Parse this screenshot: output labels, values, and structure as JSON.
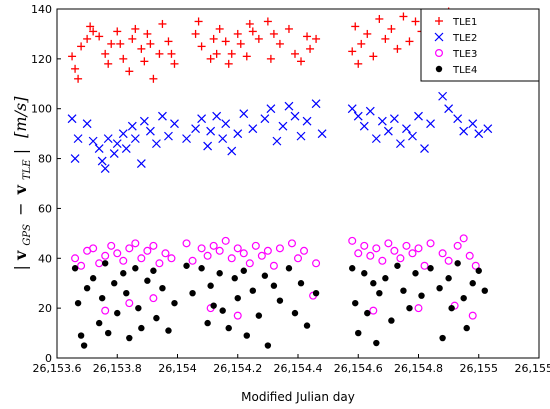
{
  "chart_data": {
    "type": "scatter",
    "title": "",
    "xlabel": "Modified Julian day",
    "ylabel": {
      "bar_left": "|",
      "v1": "v",
      "s1": "GPS",
      "minus": "−",
      "v2": "v",
      "s2": "TLE",
      "bar_right": "|",
      "unit": "[m/s]"
    },
    "xlim": [
      26153.6,
      26155.2
    ],
    "ylim": [
      0,
      140
    ],
    "x_ticks": [
      {
        "value": 26153.6,
        "label": "26,153.6"
      },
      {
        "value": 26153.8,
        "label": "26,153.8"
      },
      {
        "value": 26154.0,
        "label": "26,154"
      },
      {
        "value": 26154.2,
        "label": "26,154.2"
      },
      {
        "value": 26154.4,
        "label": "26,154.4"
      },
      {
        "value": 26154.6,
        "label": "26,154.6"
      },
      {
        "value": 26154.8,
        "label": "26,154.8"
      },
      {
        "value": 26155.0,
        "label": "26,155"
      },
      {
        "value": 26155.2,
        "label": "26,155.2"
      }
    ],
    "y_ticks": [
      {
        "value": 0,
        "label": "0"
      },
      {
        "value": 20,
        "label": "20"
      },
      {
        "value": 40,
        "label": "40"
      },
      {
        "value": 60,
        "label": "60"
      },
      {
        "value": 80,
        "label": "80"
      },
      {
        "value": 100,
        "label": "100"
      },
      {
        "value": 120,
        "label": "120"
      },
      {
        "value": 140,
        "label": "140"
      }
    ],
    "grid": false,
    "legend_position": "top-right",
    "series": [
      {
        "name": "TLE1",
        "marker": "plus",
        "color": "#ff0000",
        "points": [
          [
            26153.65,
            121
          ],
          [
            26153.66,
            116
          ],
          [
            26153.67,
            112
          ],
          [
            26153.68,
            125
          ],
          [
            26153.7,
            128
          ],
          [
            26153.71,
            133
          ],
          [
            26153.72,
            131
          ],
          [
            26153.74,
            129
          ],
          [
            26153.76,
            122
          ],
          [
            26153.77,
            118
          ],
          [
            26153.78,
            126
          ],
          [
            26153.8,
            131
          ],
          [
            26153.81,
            126
          ],
          [
            26153.82,
            120
          ],
          [
            26153.84,
            115
          ],
          [
            26153.85,
            128
          ],
          [
            26153.86,
            132
          ],
          [
            26153.88,
            124
          ],
          [
            26153.89,
            119
          ],
          [
            26153.9,
            130
          ],
          [
            26153.91,
            126
          ],
          [
            26153.92,
            112
          ],
          [
            26153.94,
            122
          ],
          [
            26153.95,
            134
          ],
          [
            26153.97,
            127
          ],
          [
            26153.98,
            122
          ],
          [
            26153.99,
            118
          ],
          [
            26154.06,
            130
          ],
          [
            26154.07,
            135
          ],
          [
            26154.08,
            125
          ],
          [
            26154.11,
            120
          ],
          [
            26154.12,
            128
          ],
          [
            26154.13,
            122
          ],
          [
            26154.14,
            132
          ],
          [
            26154.16,
            127
          ],
          [
            26154.17,
            118
          ],
          [
            26154.18,
            122
          ],
          [
            26154.2,
            130
          ],
          [
            26154.21,
            126
          ],
          [
            26154.23,
            121
          ],
          [
            26154.24,
            134
          ],
          [
            26154.25,
            131
          ],
          [
            26154.27,
            128
          ],
          [
            26154.3,
            135
          ],
          [
            26154.31,
            120
          ],
          [
            26154.32,
            130
          ],
          [
            26154.34,
            126
          ],
          [
            26154.37,
            132
          ],
          [
            26154.39,
            122
          ],
          [
            26154.41,
            119
          ],
          [
            26154.43,
            129
          ],
          [
            26154.44,
            124
          ],
          [
            26154.46,
            128
          ],
          [
            26154.58,
            123
          ],
          [
            26154.59,
            133
          ],
          [
            26154.6,
            118
          ],
          [
            26154.61,
            126
          ],
          [
            26154.63,
            130
          ],
          [
            26154.65,
            121
          ],
          [
            26154.67,
            136
          ],
          [
            26154.69,
            128
          ],
          [
            26154.71,
            132
          ],
          [
            26154.73,
            124
          ],
          [
            26154.75,
            137
          ],
          [
            26154.77,
            127
          ],
          [
            26154.79,
            135
          ],
          [
            26154.81,
            131
          ],
          [
            26154.83,
            122
          ],
          [
            26154.86,
            134
          ],
          [
            26154.88,
            128
          ],
          [
            26154.9,
            139
          ],
          [
            26154.93,
            138
          ],
          [
            26154.95,
            133
          ],
          [
            26154.97,
            136
          ],
          [
            26154.99,
            130
          ]
        ]
      },
      {
        "name": "TLE2",
        "marker": "x",
        "color": "#0000ff",
        "points": [
          [
            26153.65,
            96
          ],
          [
            26153.66,
            80
          ],
          [
            26153.67,
            88
          ],
          [
            26153.7,
            94
          ],
          [
            26153.72,
            87
          ],
          [
            26153.74,
            84
          ],
          [
            26153.75,
            79
          ],
          [
            26153.76,
            76
          ],
          [
            26153.77,
            88
          ],
          [
            26153.79,
            82
          ],
          [
            26153.8,
            86
          ],
          [
            26153.82,
            90
          ],
          [
            26153.83,
            84
          ],
          [
            26153.85,
            93
          ],
          [
            26153.86,
            88
          ],
          [
            26153.88,
            78
          ],
          [
            26153.89,
            95
          ],
          [
            26153.91,
            91
          ],
          [
            26153.93,
            86
          ],
          [
            26153.95,
            97
          ],
          [
            26153.97,
            89
          ],
          [
            26153.99,
            94
          ],
          [
            26154.03,
            88
          ],
          [
            26154.06,
            92
          ],
          [
            26154.08,
            96
          ],
          [
            26154.1,
            85
          ],
          [
            26154.11,
            91
          ],
          [
            26154.13,
            97
          ],
          [
            26154.15,
            88
          ],
          [
            26154.16,
            94
          ],
          [
            26154.18,
            83
          ],
          [
            26154.2,
            90
          ],
          [
            26154.22,
            98
          ],
          [
            26154.25,
            92
          ],
          [
            26154.29,
            96
          ],
          [
            26154.31,
            100
          ],
          [
            26154.33,
            87
          ],
          [
            26154.35,
            93
          ],
          [
            26154.37,
            101
          ],
          [
            26154.39,
            97
          ],
          [
            26154.41,
            89
          ],
          [
            26154.43,
            95
          ],
          [
            26154.46,
            102
          ],
          [
            26154.48,
            90
          ],
          [
            26154.58,
            100
          ],
          [
            26154.6,
            97
          ],
          [
            26154.62,
            93
          ],
          [
            26154.64,
            99
          ],
          [
            26154.66,
            88
          ],
          [
            26154.68,
            95
          ],
          [
            26154.7,
            91
          ],
          [
            26154.72,
            96
          ],
          [
            26154.74,
            86
          ],
          [
            26154.76,
            92
          ],
          [
            26154.78,
            89
          ],
          [
            26154.8,
            97
          ],
          [
            26154.82,
            84
          ],
          [
            26154.84,
            94
          ],
          [
            26154.88,
            105
          ],
          [
            26154.9,
            100
          ],
          [
            26154.93,
            96
          ],
          [
            26154.95,
            91
          ],
          [
            26154.98,
            94
          ],
          [
            26155.0,
            90
          ],
          [
            26155.03,
            92
          ]
        ]
      },
      {
        "name": "TLE3",
        "marker": "circle-open",
        "color": "#ff00ff",
        "points": [
          [
            26153.66,
            40
          ],
          [
            26153.68,
            37
          ],
          [
            26153.7,
            43
          ],
          [
            26153.72,
            44
          ],
          [
            26153.74,
            38
          ],
          [
            26153.76,
            41
          ],
          [
            26153.78,
            45
          ],
          [
            26153.8,
            42
          ],
          [
            26153.82,
            39
          ],
          [
            26153.84,
            44
          ],
          [
            26153.86,
            46
          ],
          [
            26153.88,
            40
          ],
          [
            26153.9,
            43
          ],
          [
            26153.92,
            45
          ],
          [
            26153.94,
            38
          ],
          [
            26153.96,
            42
          ],
          [
            26153.98,
            40
          ],
          [
            26154.03,
            46
          ],
          [
            26154.05,
            39
          ],
          [
            26154.08,
            44
          ],
          [
            26154.1,
            41
          ],
          [
            26154.12,
            45
          ],
          [
            26154.14,
            43
          ],
          [
            26154.16,
            47
          ],
          [
            26154.18,
            40
          ],
          [
            26154.2,
            44
          ],
          [
            26154.22,
            42
          ],
          [
            26154.24,
            38
          ],
          [
            26154.26,
            45
          ],
          [
            26154.28,
            41
          ],
          [
            26154.3,
            43
          ],
          [
            26154.32,
            37
          ],
          [
            26154.34,
            44
          ],
          [
            26154.38,
            46
          ],
          [
            26154.4,
            40
          ],
          [
            26154.42,
            43
          ],
          [
            26154.46,
            38
          ],
          [
            26154.58,
            47
          ],
          [
            26154.6,
            42
          ],
          [
            26154.62,
            45
          ],
          [
            26154.64,
            41
          ],
          [
            26154.66,
            44
          ],
          [
            26154.68,
            39
          ],
          [
            26154.7,
            46
          ],
          [
            26154.72,
            43
          ],
          [
            26154.74,
            40
          ],
          [
            26154.76,
            45
          ],
          [
            26154.78,
            42
          ],
          [
            26154.8,
            44
          ],
          [
            26154.82,
            37
          ],
          [
            26154.84,
            46
          ],
          [
            26154.88,
            42
          ],
          [
            26154.9,
            39
          ],
          [
            26154.93,
            45
          ],
          [
            26154.95,
            48
          ],
          [
            26154.97,
            41
          ],
          [
            26154.99,
            37
          ],
          [
            26153.76,
            19
          ],
          [
            26153.84,
            22
          ],
          [
            26153.92,
            24
          ],
          [
            26154.2,
            17
          ],
          [
            26154.65,
            19
          ],
          [
            26154.8,
            20
          ],
          [
            26154.92,
            21
          ],
          [
            26154.98,
            17
          ],
          [
            26154.11,
            20
          ],
          [
            26154.45,
            25
          ]
        ]
      },
      {
        "name": "TLE4",
        "marker": "circle-filled",
        "color": "#000000",
        "points": [
          [
            26153.66,
            36
          ],
          [
            26153.67,
            22
          ],
          [
            26153.68,
            9
          ],
          [
            26153.69,
            5
          ],
          [
            26153.7,
            28
          ],
          [
            26153.72,
            32
          ],
          [
            26153.74,
            14
          ],
          [
            26153.75,
            24
          ],
          [
            26153.76,
            38
          ],
          [
            26153.77,
            10
          ],
          [
            26153.79,
            30
          ],
          [
            26153.8,
            18
          ],
          [
            26153.82,
            34
          ],
          [
            26153.83,
            26
          ],
          [
            26153.84,
            8
          ],
          [
            26153.86,
            36
          ],
          [
            26153.87,
            20
          ],
          [
            26153.88,
            12
          ],
          [
            26153.9,
            31
          ],
          [
            26153.92,
            35
          ],
          [
            26153.93,
            16
          ],
          [
            26153.95,
            28
          ],
          [
            26153.97,
            11
          ],
          [
            26153.99,
            22
          ],
          [
            26154.03,
            37
          ],
          [
            26154.05,
            26
          ],
          [
            26154.08,
            36
          ],
          [
            26154.1,
            14
          ],
          [
            26154.11,
            29
          ],
          [
            26154.12,
            21
          ],
          [
            26154.14,
            34
          ],
          [
            26154.15,
            19
          ],
          [
            26154.17,
            12
          ],
          [
            26154.19,
            32
          ],
          [
            26154.2,
            24
          ],
          [
            26154.22,
            35
          ],
          [
            26154.23,
            9
          ],
          [
            26154.25,
            27
          ],
          [
            26154.27,
            17
          ],
          [
            26154.29,
            33
          ],
          [
            26154.3,
            5
          ],
          [
            26154.32,
            29
          ],
          [
            26154.34,
            23
          ],
          [
            26154.37,
            36
          ],
          [
            26154.39,
            18
          ],
          [
            26154.41,
            30
          ],
          [
            26154.43,
            13
          ],
          [
            26154.46,
            26
          ],
          [
            26154.58,
            36
          ],
          [
            26154.59,
            22
          ],
          [
            26154.6,
            10
          ],
          [
            26154.62,
            34
          ],
          [
            26154.63,
            18
          ],
          [
            26154.65,
            30
          ],
          [
            26154.66,
            6
          ],
          [
            26154.67,
            26
          ],
          [
            26154.69,
            32
          ],
          [
            26154.71,
            15
          ],
          [
            26154.73,
            37
          ],
          [
            26154.75,
            27
          ],
          [
            26154.77,
            20
          ],
          [
            26154.79,
            34
          ],
          [
            26154.81,
            25
          ],
          [
            26154.84,
            36
          ],
          [
            26154.87,
            28
          ],
          [
            26154.88,
            8
          ],
          [
            26154.9,
            32
          ],
          [
            26154.91,
            20
          ],
          [
            26154.93,
            38
          ],
          [
            26154.95,
            24
          ],
          [
            26154.96,
            12
          ],
          [
            26154.98,
            30
          ],
          [
            26155.0,
            35
          ],
          [
            26155.02,
            27
          ]
        ]
      }
    ]
  }
}
